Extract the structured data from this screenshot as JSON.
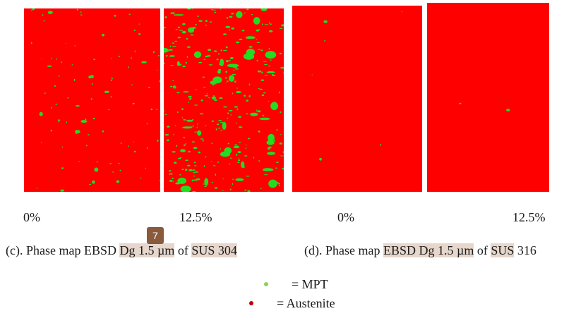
{
  "figure": {
    "panels": [
      {
        "id": "c-0",
        "label": "0%"
      },
      {
        "id": "c-12",
        "label": "12.5%"
      },
      {
        "id": "d-0",
        "label": "0%"
      },
      {
        "id": "d-12",
        "label": "12.5%"
      }
    ],
    "colors": {
      "austenite": "#fe0000",
      "mpt": "#22dd22",
      "highlight": "#e6d6cb"
    }
  },
  "caption_c": {
    "prefix": "(c). Phase map EBSD ",
    "dg": "Dg 1.5 µm",
    "of": " of ",
    "material": "SUS 304"
  },
  "caption_d": {
    "prefix": "(d). Phase map ",
    "ebsd_dg": "EBSD Dg 1.5 µm",
    "of": " of ",
    "material": "SUS",
    "number": " 316"
  },
  "badge": {
    "value": "7"
  },
  "legend": {
    "mpt": {
      "text": "=  MPT",
      "color": "#8fd14f"
    },
    "austenite": {
      "text": "=  Austenite",
      "color": "#c00000"
    }
  }
}
